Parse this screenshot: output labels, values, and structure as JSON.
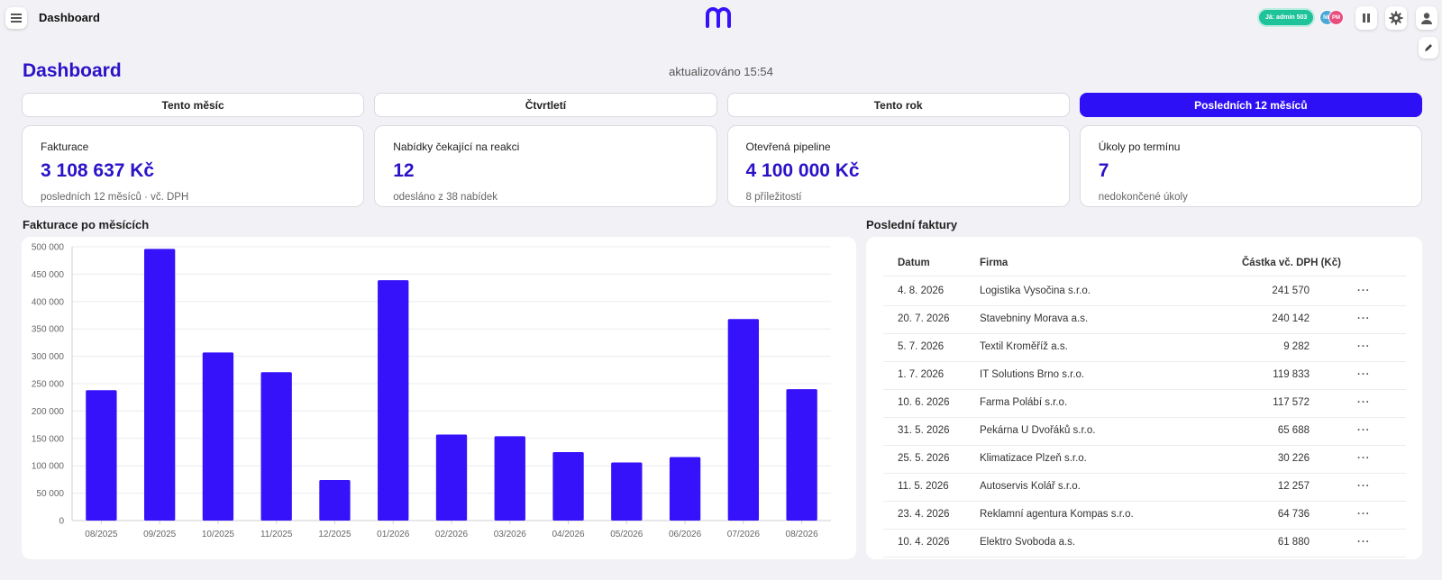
{
  "topbar": {
    "title": "Dashboard",
    "status_badge": "Já: admin 503",
    "avatars": [
      "NH",
      "PM"
    ],
    "icons": [
      "menu-icon",
      "logo-m",
      "pause-icon",
      "gear-icon",
      "user-icon",
      "pencil-icon"
    ]
  },
  "header": {
    "title": "Dashboard",
    "updated": "aktualizováno 15:54"
  },
  "tabs": [
    {
      "label": "Tento měsíc",
      "active": false
    },
    {
      "label": "Čtvrtletí",
      "active": false
    },
    {
      "label": "Tento rok",
      "active": false
    },
    {
      "label": "Posledních 12 měsíců",
      "active": true
    }
  ],
  "kpis": [
    {
      "label": "Fakturace",
      "value": "3 108 637 Kč",
      "sub": "posledních 12 měsíců · vč. DPH"
    },
    {
      "label": "Nabídky čekající na reakci",
      "value": "12",
      "sub": "odesláno z 38 nabídek"
    },
    {
      "label": "Otevřená pipeline",
      "value": "4 100 000 Kč",
      "sub": "8 příležitostí"
    },
    {
      "label": "Úkoly po termínu",
      "value": "7",
      "sub": "nedokončené úkoly"
    }
  ],
  "chart_title": "Fakturace po měsících",
  "chart_data": {
    "type": "bar",
    "categories": [
      "08/2025",
      "09/2025",
      "10/2025",
      "11/2025",
      "12/2025",
      "01/2026",
      "02/2026",
      "03/2026",
      "04/2026",
      "05/2026",
      "06/2026",
      "07/2026",
      "08/2026"
    ],
    "values": [
      238000,
      496000,
      307000,
      271000,
      74000,
      439000,
      157000,
      154000,
      125000,
      106000,
      116000,
      368000,
      240000
    ],
    "ylim": [
      0,
      500000
    ],
    "yticks": [
      "0",
      "50 000",
      "100 000",
      "150 000",
      "200 000",
      "250 000",
      "300 000",
      "350 000",
      "400 000",
      "450 000",
      "500 000"
    ],
    "grid": true,
    "color": "#3512fa",
    "title": "",
    "xlabel": "",
    "ylabel": ""
  },
  "invoices": {
    "title": "Poslední faktury",
    "columns": {
      "date": "Datum",
      "firm": "Firma",
      "amount": "Částka vč. DPH (Kč)"
    },
    "more_label": "···",
    "rows": [
      {
        "date": "4. 8. 2026",
        "firm": "Logistika Vysočina s.r.o.",
        "amount": "241 570"
      },
      {
        "date": "20. 7. 2026",
        "firm": "Stavebniny Morava a.s.",
        "amount": "240 142"
      },
      {
        "date": "5. 7. 2026",
        "firm": "Textil Kroměříž a.s.",
        "amount": "9 282"
      },
      {
        "date": "1. 7. 2026",
        "firm": "IT Solutions Brno s.r.o.",
        "amount": "119 833"
      },
      {
        "date": "10. 6. 2026",
        "firm": "Farma Polábí s.r.o.",
        "amount": "117 572"
      },
      {
        "date": "31. 5. 2026",
        "firm": "Pekárna U Dvořáků s.r.o.",
        "amount": "65 688"
      },
      {
        "date": "25. 5. 2026",
        "firm": "Klimatizace Plzeň s.r.o.",
        "amount": "30 226"
      },
      {
        "date": "11. 5. 2026",
        "firm": "Autoservis Kolář s.r.o.",
        "amount": "12 257"
      },
      {
        "date": "23. 4. 2026",
        "firm": "Reklamní agentura Kompas s.r.o.",
        "amount": "64 736"
      },
      {
        "date": "10. 4. 2026",
        "firm": "Elektro Svoboda a.s.",
        "amount": "61 880"
      }
    ]
  }
}
